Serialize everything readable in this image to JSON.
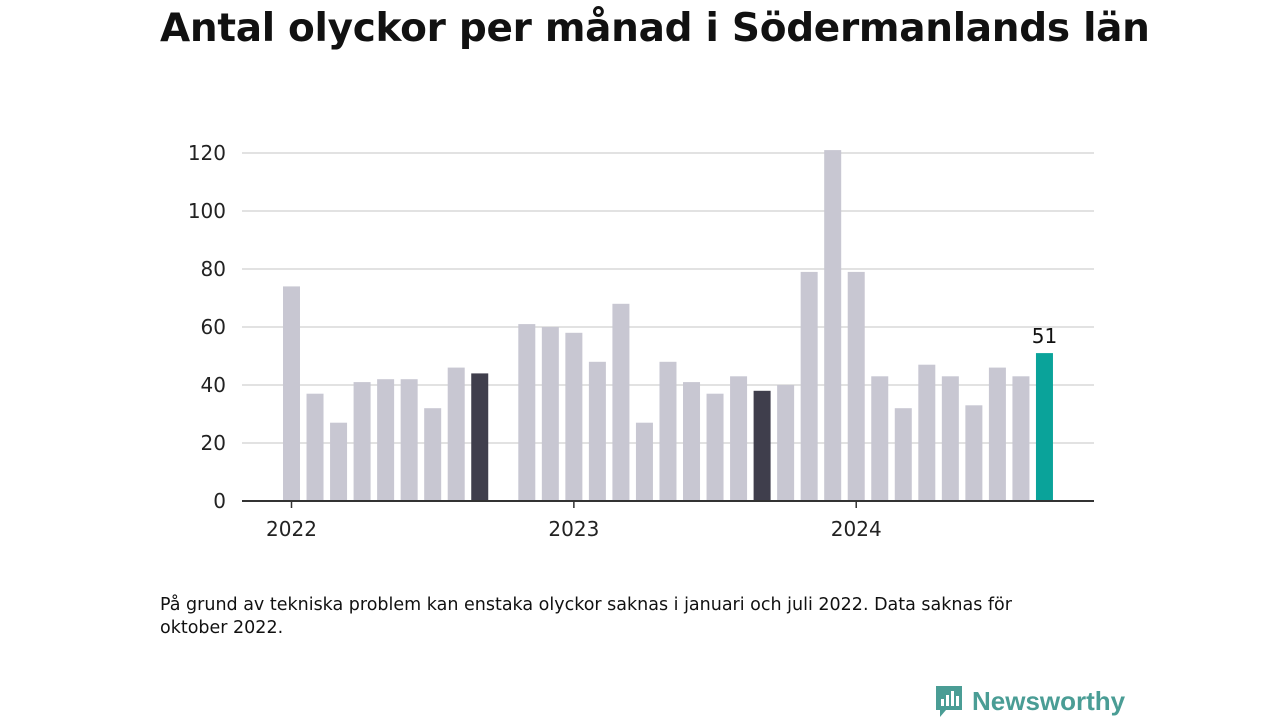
{
  "title": "Antal olyckor per månad i Södermanlands län",
  "note": "På grund av tekniska problem kan enstaka olyckor saknas i januari och juli 2022. Data saknas för oktober 2022.",
  "brand": "Newsworthy",
  "colors": {
    "bar": "#c8c7d2",
    "bar_dark": "#3f3e4c",
    "bar_highlight": "#0aa39a",
    "grid": "#d8d8d8",
    "axis": "#333333",
    "text": "#222222",
    "brand": "#4a9d95"
  },
  "chart_data": {
    "type": "bar",
    "title": "Antal olyckor per månad i Södermanlands län",
    "xlabel": "",
    "ylabel": "",
    "ylim": [
      0,
      120
    ],
    "yticks": [
      "0",
      "20",
      "40",
      "60",
      "80",
      "100",
      "120"
    ],
    "xticks": [
      {
        "label": "2022",
        "month": "2022-01"
      },
      {
        "label": "2023",
        "month": "2023-01"
      },
      {
        "label": "2024",
        "month": "2024-01"
      }
    ],
    "months": [
      "2022-01",
      "2022-02",
      "2022-03",
      "2022-04",
      "2022-05",
      "2022-06",
      "2022-07",
      "2022-08",
      "2022-09",
      "2022-10",
      "2022-11",
      "2022-12",
      "2023-01",
      "2023-02",
      "2023-03",
      "2023-04",
      "2023-05",
      "2023-06",
      "2023-07",
      "2023-08",
      "2023-09",
      "2023-10",
      "2023-11",
      "2023-12",
      "2024-01",
      "2024-02",
      "2024-03",
      "2024-04",
      "2024-05",
      "2024-06",
      "2024-07",
      "2024-08",
      "2024-09"
    ],
    "values": [
      74,
      37,
      27,
      41,
      42,
      42,
      32,
      46,
      44,
      null,
      61,
      60,
      58,
      48,
      68,
      27,
      48,
      41,
      37,
      43,
      38,
      40,
      79,
      121,
      79,
      43,
      32,
      47,
      43,
      33,
      46,
      43,
      51
    ],
    "dark_months": [
      "2022-09",
      "2023-09"
    ],
    "highlight_month": "2024-09",
    "annotations": [
      {
        "month": "2024-09",
        "text": "51"
      }
    ],
    "grid": true,
    "legend": "none"
  }
}
